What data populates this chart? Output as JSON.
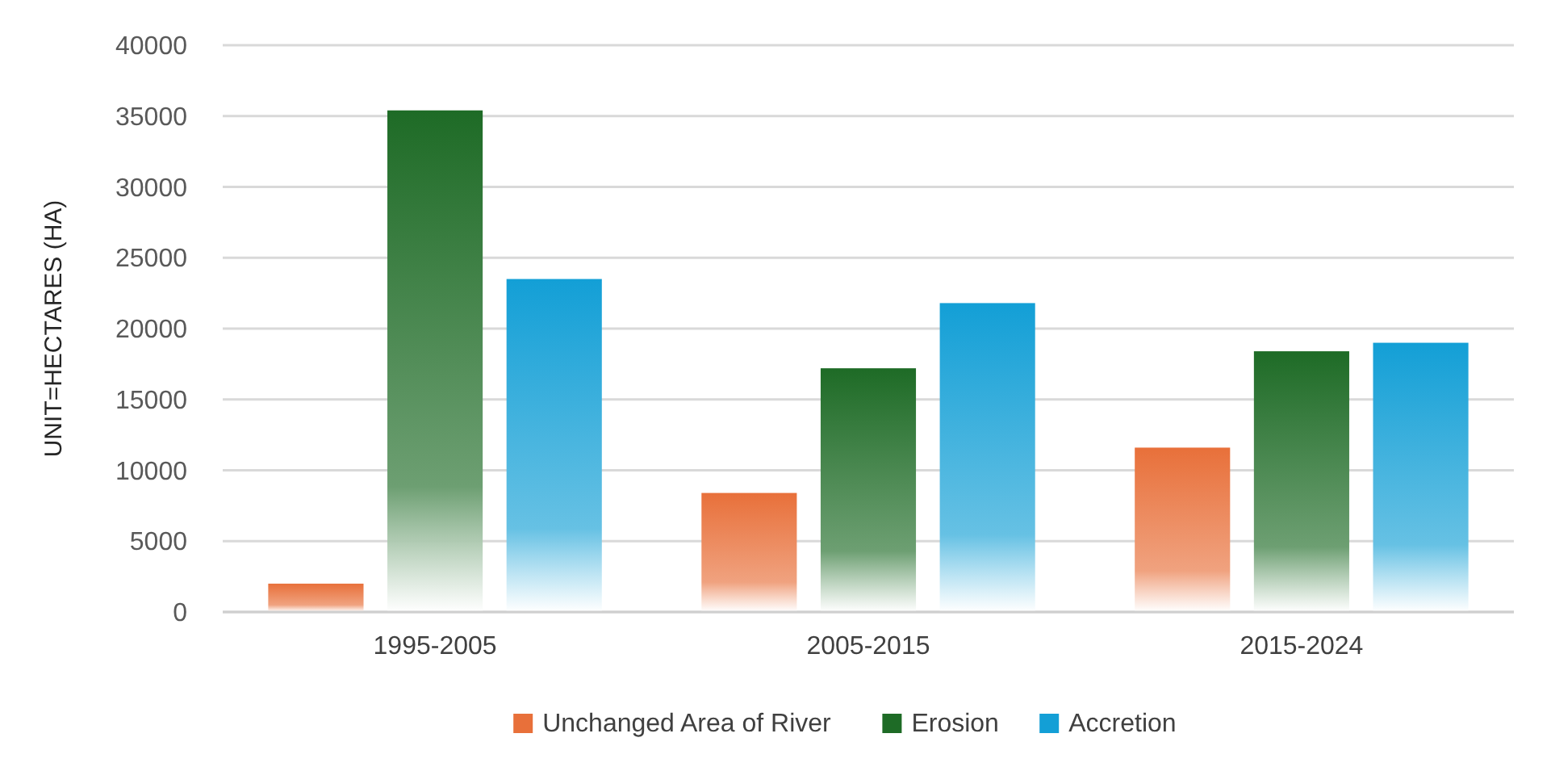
{
  "chart_data": {
    "type": "bar",
    "ylabel": "UNIT=HECTARES (HA)",
    "categories": [
      "1995-2005",
      "2005-2015",
      "2015-2024"
    ],
    "series": [
      {
        "name": "Unchanged Area of River",
        "color": "#e8703a",
        "values": [
          2000,
          8400,
          11600
        ]
      },
      {
        "name": "Erosion",
        "color": "#1e6b26",
        "values": [
          35400,
          17200,
          18400
        ]
      },
      {
        "name": "Accretion",
        "color": "#139fd6",
        "values": [
          23500,
          21800,
          19000
        ]
      }
    ],
    "ylim": [
      0,
      40000
    ],
    "yticks": [
      0,
      5000,
      10000,
      15000,
      20000,
      25000,
      30000,
      35000,
      40000
    ],
    "grid": "y",
    "legend": "bottom"
  }
}
